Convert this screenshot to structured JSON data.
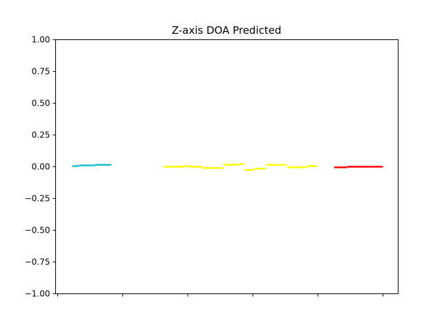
{
  "chart_data": {
    "type": "line",
    "title": "Z-axis DOA Predicted",
    "xlabel": "",
    "ylabel": "",
    "xlim": [
      0,
      100
    ],
    "ylim": [
      -1.0,
      1.0
    ],
    "yticks": [
      -1.0,
      -0.75,
      -0.5,
      -0.25,
      0.0,
      0.25,
      0.5,
      0.75,
      1.0
    ],
    "ytick_labels": [
      "−1.00",
      "−0.75",
      "−0.50",
      "−0.25",
      "0.00",
      "0.25",
      "0.50",
      "0.75",
      "1.00"
    ],
    "xticks": [
      0,
      20,
      40,
      60,
      80,
      100
    ],
    "xtick_labels": [
      "",
      "",
      "",
      "",
      "",
      ""
    ],
    "grid": false,
    "segments": [
      {
        "color": "#17becf",
        "x": [
          4.5,
          6.5
        ],
        "y": [
          0.005,
          0.005
        ]
      },
      {
        "color": "#17becf",
        "x": [
          6.5,
          11.5
        ],
        "y": [
          0.01,
          0.01
        ]
      },
      {
        "color": "#17becf",
        "x": [
          11.5,
          16.5
        ],
        "y": [
          0.015,
          0.015
        ]
      },
      {
        "color": "#ffff00",
        "x": [
          32.5,
          39.0
        ],
        "y": [
          0.0,
          0.0
        ]
      },
      {
        "color": "#ffff00",
        "x": [
          39.0,
          40.5
        ],
        "y": [
          0.005,
          0.005
        ]
      },
      {
        "color": "#ffff00",
        "x": [
          40.5,
          44.5
        ],
        "y": [
          0.0,
          0.0
        ]
      },
      {
        "color": "#ffff00",
        "x": [
          44.5,
          51.0
        ],
        "y": [
          -0.01,
          -0.01
        ]
      },
      {
        "color": "#ffff00",
        "x": [
          51.0,
          55.5
        ],
        "y": [
          0.015,
          0.015
        ]
      },
      {
        "color": "#ffff00",
        "x": [
          55.5,
          57.5
        ],
        "y": [
          0.02,
          0.02
        ]
      },
      {
        "color": "#ffff00",
        "x": [
          57.5,
          60.5
        ],
        "y": [
          -0.025,
          -0.025
        ]
      },
      {
        "color": "#ffff00",
        "x": [
          60.5,
          64.0
        ],
        "y": [
          -0.015,
          -0.015
        ]
      },
      {
        "color": "#ffff00",
        "x": [
          64.0,
          70.5
        ],
        "y": [
          0.015,
          0.015
        ]
      },
      {
        "color": "#ffff00",
        "x": [
          70.5,
          76.5
        ],
        "y": [
          -0.005,
          -0.005
        ]
      },
      {
        "color": "#ffff00",
        "x": [
          76.5,
          80.0
        ],
        "y": [
          0.005,
          0.005
        ]
      },
      {
        "color": "#ff0000",
        "x": [
          85.0,
          89.0
        ],
        "y": [
          -0.005,
          -0.005
        ]
      },
      {
        "color": "#ff0000",
        "x": [
          89.0,
          100.0
        ],
        "y": [
          0.0,
          0.0
        ]
      }
    ]
  }
}
